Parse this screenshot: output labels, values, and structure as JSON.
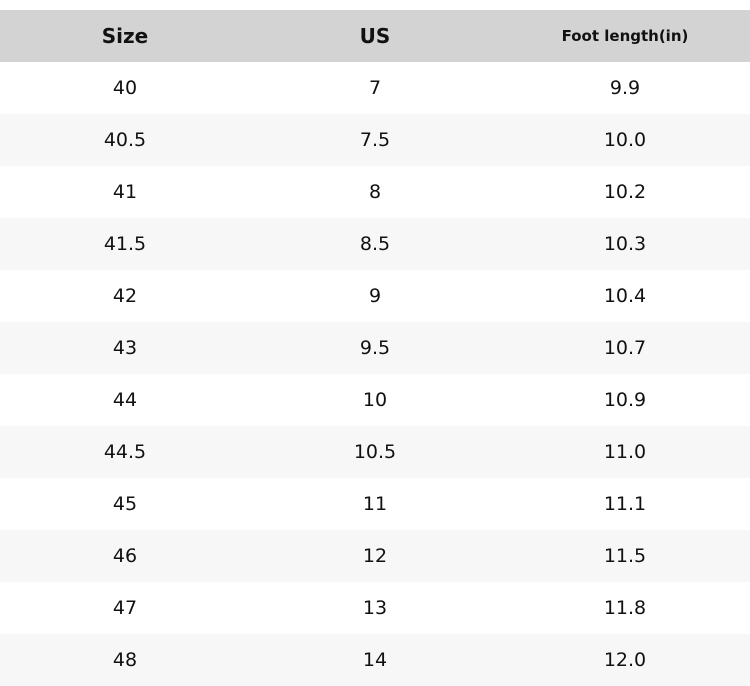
{
  "table": {
    "header": [
      "Size",
      "US",
      "Foot length(in)"
    ],
    "rows": [
      [
        "40",
        "7",
        "9.9"
      ],
      [
        "40.5",
        "7.5",
        "10.0"
      ],
      [
        "41",
        "8",
        "10.2"
      ],
      [
        "41.5",
        "8.5",
        "10.3"
      ],
      [
        "42",
        "9",
        "10.4"
      ],
      [
        "43",
        "9.5",
        "10.7"
      ],
      [
        "44",
        "10",
        "10.9"
      ],
      [
        "44.5",
        "10.5",
        "11.0"
      ],
      [
        "45",
        "11",
        "11.1"
      ],
      [
        "46",
        "12",
        "11.5"
      ],
      [
        "47",
        "13",
        "11.8"
      ],
      [
        "48",
        "14",
        "12.0"
      ]
    ]
  }
}
